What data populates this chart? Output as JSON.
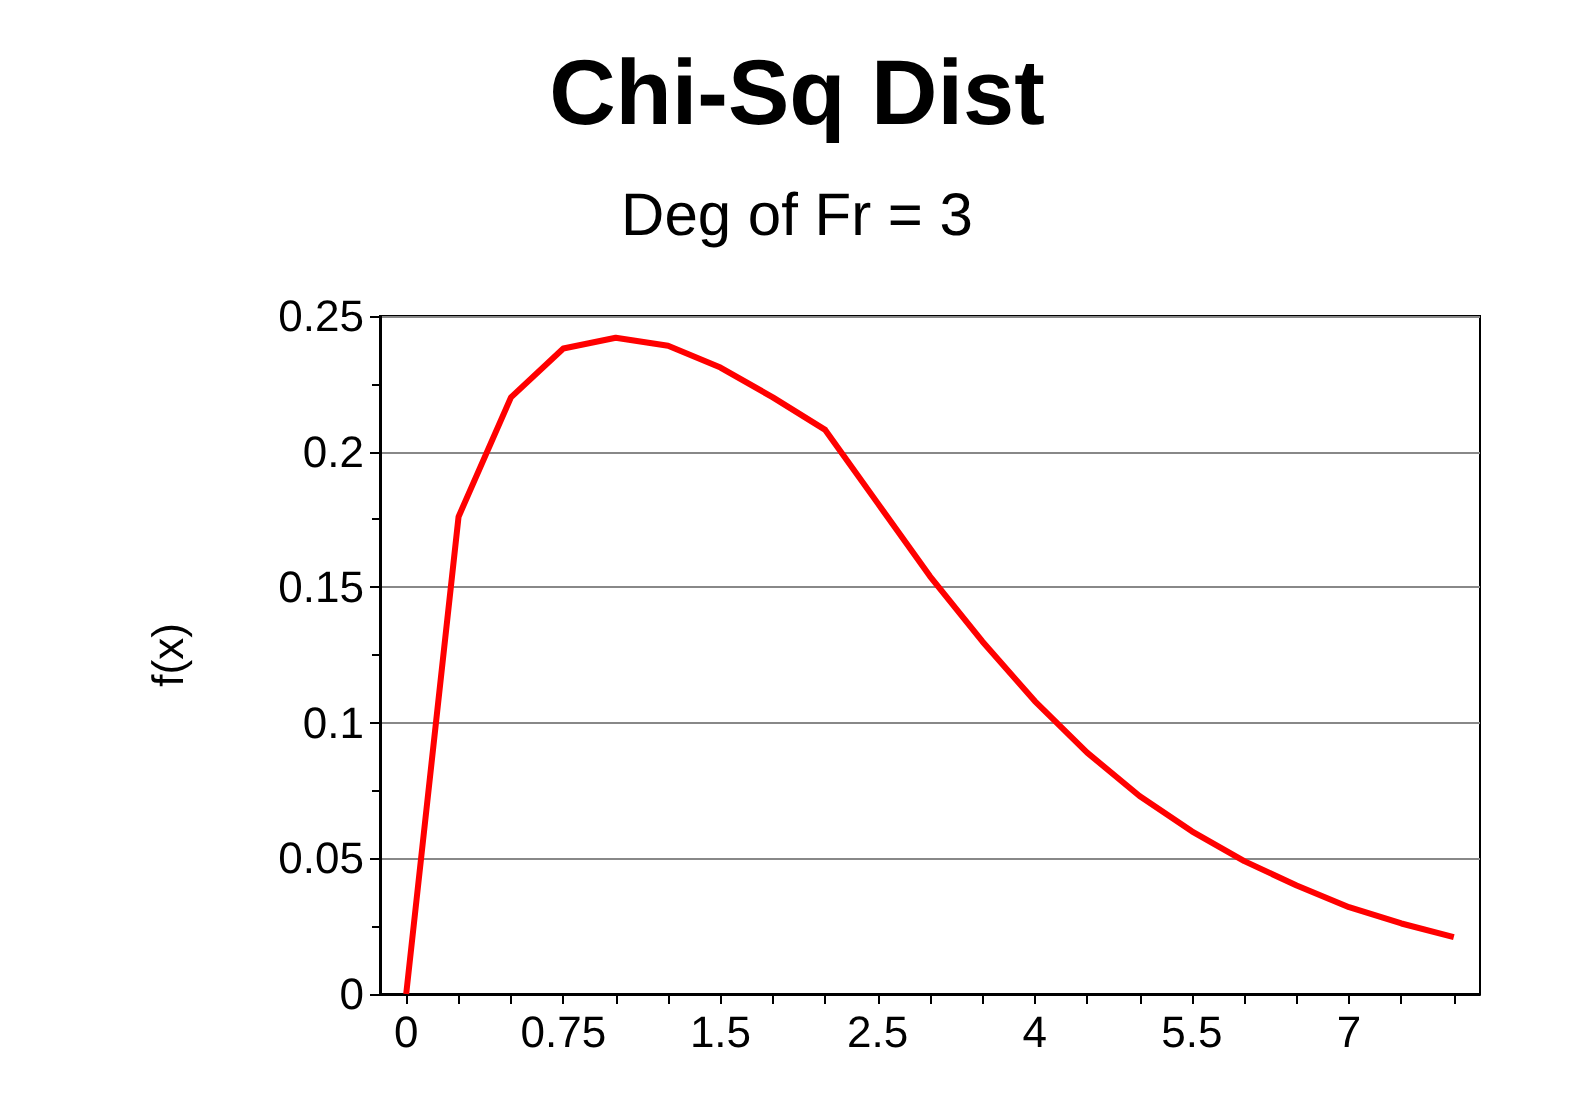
{
  "chart_data": {
    "type": "line",
    "title": "Chi-Sq Dist",
    "subtitle": "Deg of Fr = 3",
    "ylabel": "f(x)",
    "categories": [
      "0",
      null,
      null,
      "0.75",
      null,
      null,
      "1.5",
      null,
      null,
      "2.5",
      null,
      null,
      "4",
      null,
      null,
      "5.5",
      null,
      null,
      "7",
      null,
      null
    ],
    "series": [
      {
        "color": "#ff0000",
        "values": [
          0,
          0.176,
          0.22,
          0.238,
          0.242,
          0.239,
          0.231,
          0.22,
          0.208,
          0.181,
          0.154,
          0.13,
          0.108,
          0.089,
          0.073,
          0.06,
          0.049,
          0.04,
          0.032,
          0.026,
          0.021
        ]
      }
    ],
    "ylim": [
      0,
      0.25
    ],
    "yticks": [
      0,
      0.05,
      0.1,
      0.15,
      0.2,
      0.25
    ],
    "grid": "y",
    "marker": "none",
    "line_style": "solid"
  }
}
